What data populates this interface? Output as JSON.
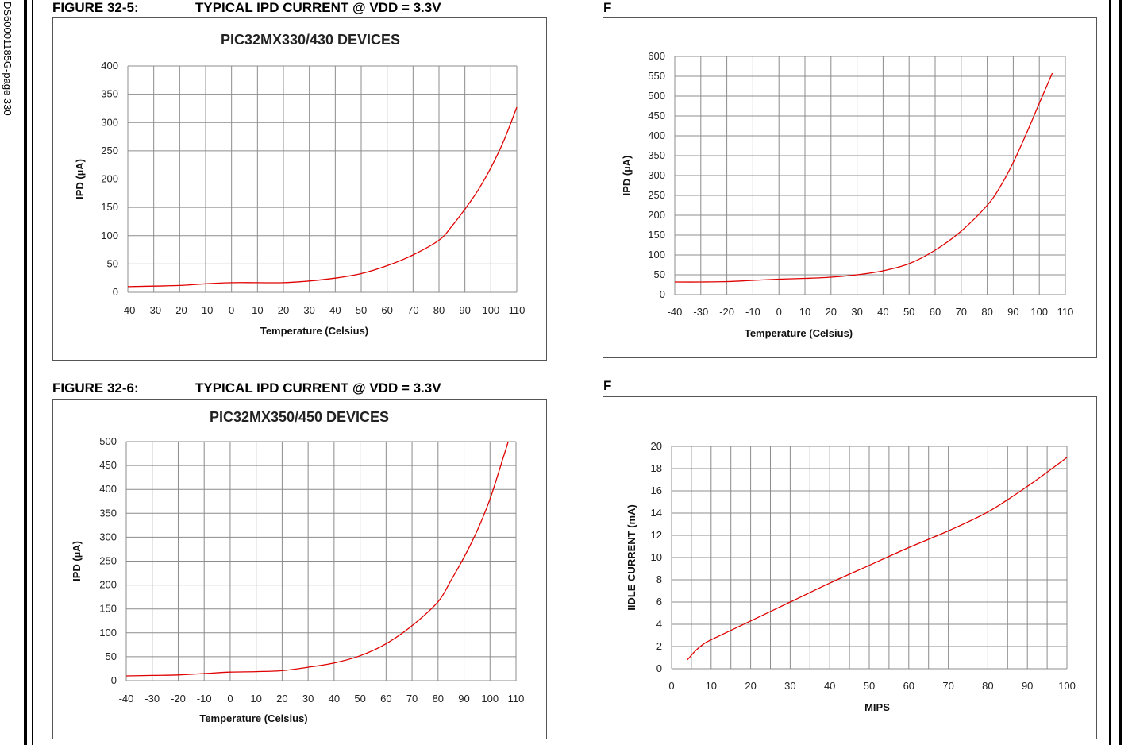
{
  "page": {
    "sidebar_text": "DS60001185G-page  330",
    "captions": {
      "fig5_number": "FIGURE 32-5:",
      "fig5_title": "TYPICAL IPD CURRENT @ VDD = 3.3V",
      "fig6_number": "FIGURE 32-6:",
      "fig6_title": "TYPICAL IPD CURRENT @ VDD = 3.3V",
      "right_top": "F",
      "right_bottom": "F"
    }
  },
  "colors": {
    "curve": "#e00000",
    "grid": "#8c8c8c",
    "border": "#555555"
  },
  "chart_data": [
    {
      "id": "fig5",
      "type": "line",
      "title": "PIC32MX330/430 DEVICES",
      "xlabel": "Temperature (Celsius)",
      "ylabel": "IPD (µA)",
      "xlim": [
        -40,
        110
      ],
      "ylim": [
        0,
        400
      ],
      "xticks": [
        -40,
        -30,
        -20,
        -10,
        0,
        10,
        20,
        30,
        40,
        50,
        60,
        70,
        80,
        90,
        100,
        110
      ],
      "yticks": [
        0,
        50,
        100,
        150,
        200,
        250,
        300,
        350,
        400
      ],
      "grid": true,
      "series": [
        {
          "name": "IPD",
          "x": [
            -40,
            -30,
            -20,
            -10,
            0,
            10,
            20,
            30,
            40,
            50,
            60,
            70,
            80,
            85,
            90,
            95,
            100,
            105,
            110
          ],
          "y": [
            10,
            11,
            12,
            15,
            17,
            17,
            17,
            20,
            25,
            33,
            47,
            66,
            92,
            117,
            147,
            180,
            220,
            268,
            327
          ]
        }
      ]
    },
    {
      "id": "figR1",
      "type": "line",
      "title": "",
      "xlabel": "Temperature (Celsius)",
      "ylabel": "IPD (µA)",
      "xlim": [
        -40,
        110
      ],
      "ylim": [
        0,
        600
      ],
      "xticks": [
        -40,
        -30,
        -20,
        -10,
        0,
        10,
        20,
        30,
        40,
        50,
        60,
        70,
        80,
        90,
        100,
        110
      ],
      "yticks": [
        0,
        50,
        100,
        150,
        200,
        250,
        300,
        350,
        400,
        450,
        500,
        550,
        600
      ],
      "grid": true,
      "series": [
        {
          "name": "IPD",
          "x": [
            -40,
            -30,
            -20,
            -10,
            0,
            10,
            20,
            30,
            40,
            50,
            60,
            70,
            80,
            85,
            90,
            95,
            100,
            105
          ],
          "y": [
            32,
            32,
            33,
            36,
            39,
            41,
            44,
            50,
            60,
            78,
            112,
            160,
            225,
            272,
            333,
            405,
            482,
            558
          ]
        }
      ]
    },
    {
      "id": "fig6",
      "type": "line",
      "title": "PIC32MX350/450 DEVICES",
      "xlabel": "Temperature (Celsius)",
      "ylabel": "IPD (µA)",
      "xlim": [
        -40,
        110
      ],
      "ylim": [
        0,
        500
      ],
      "xticks": [
        -40,
        -30,
        -20,
        -10,
        0,
        10,
        20,
        30,
        40,
        50,
        60,
        70,
        80,
        90,
        100,
        110
      ],
      "yticks": [
        0,
        50,
        100,
        150,
        200,
        250,
        300,
        350,
        400,
        450,
        500
      ],
      "grid": true,
      "series": [
        {
          "name": "IPD",
          "x": [
            -40,
            -30,
            -20,
            -10,
            0,
            10,
            20,
            30,
            40,
            50,
            60,
            70,
            80,
            85,
            90,
            95,
            100,
            105,
            107
          ],
          "y": [
            10,
            11,
            12,
            15,
            18,
            19,
            21,
            28,
            37,
            52,
            77,
            115,
            165,
            210,
            258,
            313,
            380,
            465,
            500
          ]
        }
      ]
    },
    {
      "id": "figR2",
      "type": "line",
      "title": "",
      "xlabel": "MIPS",
      "ylabel": "IIDLE CURRENT (mA)",
      "xlim": [
        0,
        100
      ],
      "ylim": [
        0,
        20
      ],
      "xticks": [
        0,
        10,
        20,
        30,
        40,
        50,
        60,
        70,
        80,
        90,
        100
      ],
      "yticks": [
        0,
        2,
        4,
        6,
        8,
        10,
        12,
        14,
        16,
        18,
        20
      ],
      "grid": true,
      "series": [
        {
          "name": "IIDLE",
          "x": [
            4,
            6,
            8,
            10,
            20,
            30,
            40,
            50,
            60,
            70,
            80,
            90,
            100
          ],
          "y": [
            0.8,
            1.6,
            2.2,
            2.6,
            4.3,
            6.0,
            7.7,
            9.3,
            10.9,
            12.4,
            14.1,
            16.4,
            19.0
          ]
        }
      ]
    }
  ]
}
